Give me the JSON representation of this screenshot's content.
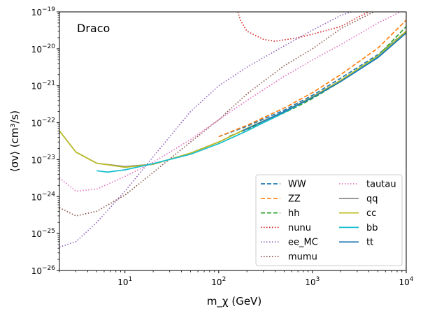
{
  "chart_data": {
    "type": "line",
    "annotation": "Draco",
    "xlabel": "m_χ (GeV)",
    "ylabel": "⟨σv⟩ (cm³/s)",
    "x_scale": "log",
    "y_scale": "log",
    "xlim": [
      2,
      10000
    ],
    "ylim": [
      1e-26,
      1e-19
    ],
    "grid": false,
    "legend": {
      "placement": "lower-right",
      "columns": 2
    },
    "x_ticks": [
      {
        "value": 10,
        "label": "10",
        "exp": "1"
      },
      {
        "value": 100,
        "label": "10",
        "exp": "2"
      },
      {
        "value": 1000,
        "label": "10",
        "exp": "3"
      },
      {
        "value": 10000,
        "label": "10",
        "exp": "4"
      }
    ],
    "y_ticks": [
      {
        "value": 1e-26,
        "label": "10",
        "exp": "−26"
      },
      {
        "value": 1e-25,
        "label": "10",
        "exp": "−25"
      },
      {
        "value": 1e-24,
        "label": "10",
        "exp": "−24"
      },
      {
        "value": 1e-23,
        "label": "10",
        "exp": "−23"
      },
      {
        "value": 1e-22,
        "label": "10",
        "exp": "−22"
      },
      {
        "value": 1e-21,
        "label": "10",
        "exp": "−21"
      },
      {
        "value": 1e-20,
        "label": "10",
        "exp": "−20"
      },
      {
        "value": 1e-19,
        "label": "10",
        "exp": "−19"
      }
    ],
    "series": [
      {
        "name": "WW",
        "color": "#1f77b4",
        "style": "dashed",
        "points": [
          [
            100,
            4.2e-23
          ],
          [
            200,
            8e-23
          ],
          [
            500,
            2.2e-22
          ],
          [
            1000,
            5.5e-22
          ],
          [
            2000,
            1.6e-21
          ],
          [
            5000,
            7e-21
          ],
          [
            10000,
            3e-20
          ]
        ]
      },
      {
        "name": "ZZ",
        "color": "#ff7f0e",
        "style": "dashed",
        "points": [
          [
            100,
            4.2e-23
          ],
          [
            200,
            8.5e-23
          ],
          [
            500,
            2.5e-22
          ],
          [
            1000,
            6.5e-22
          ],
          [
            2000,
            2e-21
          ],
          [
            5000,
            1.05e-20
          ],
          [
            10000,
            6e-20
          ]
        ]
      },
      {
        "name": "hh",
        "color": "#2ca02c",
        "style": "dashed",
        "points": [
          [
            130,
            4.3e-23
          ],
          [
            300,
            1e-22
          ],
          [
            700,
            2.8e-22
          ],
          [
            1000,
            4.5e-22
          ],
          [
            2000,
            1.3e-21
          ],
          [
            5000,
            6.5e-21
          ],
          [
            10000,
            4e-20
          ]
        ]
      },
      {
        "name": "nunu",
        "color": "#d62728",
        "style": "dotted",
        "points": [
          [
            160,
            1e-19
          ],
          [
            170,
            6e-20
          ],
          [
            200,
            3e-20
          ],
          [
            300,
            1.8e-20
          ],
          [
            400,
            1.6e-20
          ],
          [
            700,
            2e-20
          ],
          [
            1000,
            2.5e-20
          ],
          [
            2000,
            4e-20
          ],
          [
            3000,
            7e-20
          ],
          [
            4000,
            1e-19
          ]
        ]
      },
      {
        "name": "ee_MC",
        "color": "#9467bd",
        "style": "dotted",
        "points": [
          [
            2,
            4.3e-26
          ],
          [
            3,
            6e-26
          ],
          [
            5,
            2e-25
          ],
          [
            10,
            1.4e-24
          ],
          [
            20,
            1.2e-23
          ],
          [
            50,
            2e-22
          ],
          [
            100,
            1e-21
          ],
          [
            200,
            3.2e-21
          ],
          [
            500,
            1.2e-20
          ],
          [
            1000,
            3.2e-20
          ],
          [
            2000,
            8e-20
          ],
          [
            2600,
            1e-19
          ]
        ]
      },
      {
        "name": "mumu",
        "color": "#8c564b",
        "style": "dotted",
        "points": [
          [
            2,
            5e-25
          ],
          [
            3,
            3e-25
          ],
          [
            5,
            4e-25
          ],
          [
            10,
            1.1e-24
          ],
          [
            20,
            4.5e-24
          ],
          [
            50,
            3e-23
          ],
          [
            100,
            1.2e-22
          ],
          [
            200,
            6e-22
          ],
          [
            500,
            3.5e-21
          ],
          [
            1000,
            1e-20
          ],
          [
            2000,
            3.5e-20
          ],
          [
            4500,
            1e-19
          ]
        ]
      },
      {
        "name": "tautau",
        "color": "#e377c2",
        "style": "dotted",
        "points": [
          [
            2,
            3.2e-24
          ],
          [
            3,
            1.4e-24
          ],
          [
            5,
            1.6e-24
          ],
          [
            10,
            3.5e-24
          ],
          [
            20,
            8.5e-24
          ],
          [
            50,
            3.5e-23
          ],
          [
            100,
            1.2e-22
          ],
          [
            200,
            4e-22
          ],
          [
            500,
            1.8e-21
          ],
          [
            1000,
            5e-21
          ],
          [
            2000,
            1.3e-20
          ],
          [
            5000,
            5e-20
          ],
          [
            10000,
            1.2e-19
          ]
        ]
      },
      {
        "name": "qq",
        "color": "#7f7f7f",
        "style": "solid",
        "points": [
          [
            2,
            6e-23
          ],
          [
            3,
            1.6e-23
          ],
          [
            5,
            8e-24
          ],
          [
            10,
            6.5e-24
          ],
          [
            20,
            7.5e-24
          ],
          [
            50,
            1.5e-23
          ],
          [
            100,
            3e-23
          ],
          [
            200,
            7e-23
          ],
          [
            500,
            2e-22
          ],
          [
            1000,
            5e-22
          ],
          [
            2000,
            1.4e-21
          ],
          [
            5000,
            6e-21
          ],
          [
            10000,
            2.8e-20
          ]
        ]
      },
      {
        "name": "cc",
        "color": "#bcbd22",
        "style": "solid",
        "points": [
          [
            2,
            6e-23
          ],
          [
            3,
            1.6e-23
          ],
          [
            5,
            8e-24
          ],
          [
            10,
            6.2e-24
          ],
          [
            20,
            7.5e-24
          ],
          [
            50,
            1.5e-23
          ],
          [
            100,
            3e-23
          ],
          [
            200,
            7e-23
          ],
          [
            500,
            2e-22
          ],
          [
            1000,
            5e-22
          ],
          [
            2000,
            1.4e-21
          ],
          [
            5000,
            6.5e-21
          ],
          [
            10000,
            3e-20
          ]
        ]
      },
      {
        "name": "bb",
        "color": "#17becf",
        "style": "solid",
        "points": [
          [
            5,
            5e-24
          ],
          [
            6.5,
            4.6e-24
          ],
          [
            10,
            5.3e-24
          ],
          [
            20,
            7.8e-24
          ],
          [
            50,
            1.4e-23
          ],
          [
            100,
            2.7e-23
          ],
          [
            200,
            6e-23
          ],
          [
            500,
            1.9e-22
          ],
          [
            1000,
            4.8e-22
          ],
          [
            2000,
            1.3e-21
          ],
          [
            5000,
            6e-21
          ],
          [
            10000,
            2.7e-20
          ]
        ]
      },
      {
        "name": "tt",
        "color": "#1f77b4",
        "style": "solid",
        "points": [
          [
            180,
            6e-23
          ],
          [
            300,
            1.1e-22
          ],
          [
            500,
            2e-22
          ],
          [
            1000,
            4.8e-22
          ],
          [
            2000,
            1.3e-21
          ],
          [
            5000,
            5.8e-21
          ],
          [
            10000,
            2.7e-20
          ]
        ]
      }
    ]
  }
}
